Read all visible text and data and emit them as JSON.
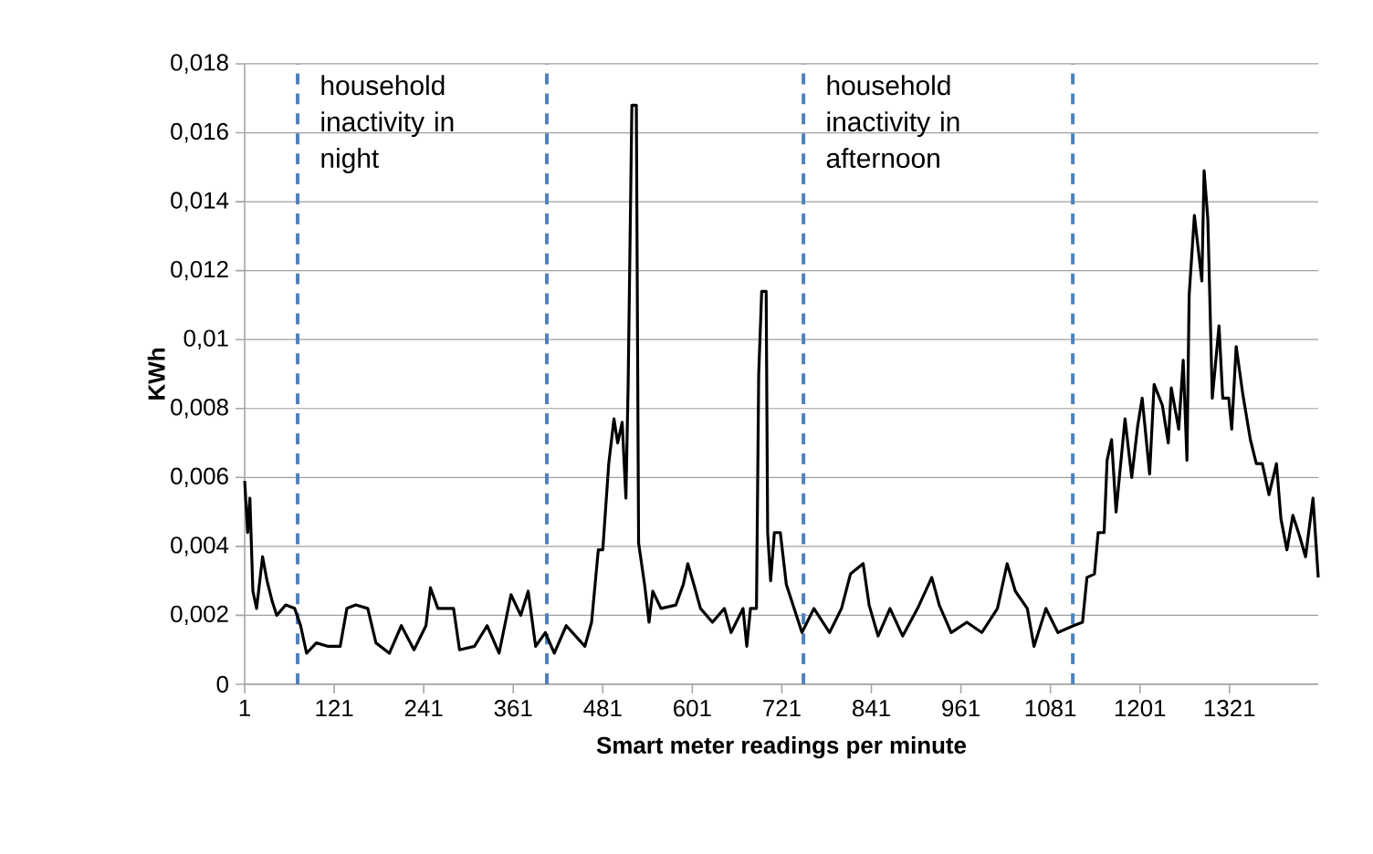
{
  "chart_data": {
    "type": "line",
    "xlabel": "Smart meter readings per minute",
    "ylabel": "KWh",
    "x": [
      1,
      5,
      8,
      12,
      17,
      25,
      31,
      38,
      44,
      56,
      68,
      76,
      84,
      97,
      113,
      129,
      138,
      150,
      166,
      177,
      195,
      211,
      228,
      244,
      250,
      260,
      281,
      289,
      309,
      326,
      342,
      358,
      371,
      381,
      391,
      404,
      416,
      432,
      457,
      466,
      475,
      481,
      489,
      496,
      501,
      507,
      512,
      515,
      520,
      526,
      529,
      537,
      543,
      548,
      559,
      579,
      589,
      595,
      603,
      612,
      628,
      644,
      653,
      669,
      674,
      679,
      687,
      690,
      694,
      700,
      702,
      706,
      711,
      719,
      727,
      748,
      764,
      785,
      801,
      813,
      830,
      838,
      850,
      866,
      883,
      903,
      922,
      932,
      948,
      969,
      989,
      1010,
      1023,
      1034,
      1050,
      1059,
      1075,
      1091,
      1112,
      1124,
      1130,
      1140,
      1145,
      1153,
      1157,
      1163,
      1169,
      1181,
      1190,
      1198,
      1204,
      1214,
      1220,
      1231,
      1239,
      1243,
      1253,
      1259,
      1264,
      1267,
      1274,
      1284,
      1287,
      1292,
      1298,
      1307,
      1312,
      1320,
      1324,
      1330,
      1339,
      1349,
      1357,
      1365,
      1374,
      1384,
      1390,
      1398,
      1406,
      1415,
      1423,
      1433,
      1440
    ],
    "series": [
      {
        "color": "#000000",
        "values": [
          0.0059,
          0.0044,
          0.0054,
          0.0027,
          0.0022,
          0.0037,
          0.003,
          0.0024,
          0.002,
          0.0023,
          0.0022,
          0.0017,
          0.0009,
          0.0012,
          0.0011,
          0.0011,
          0.0022,
          0.0023,
          0.0022,
          0.0012,
          0.0009,
          0.0017,
          0.001,
          0.0017,
          0.0028,
          0.0022,
          0.0022,
          0.001,
          0.0011,
          0.0017,
          0.0009,
          0.0026,
          0.002,
          0.0027,
          0.0011,
          0.0015,
          0.0009,
          0.0017,
          0.0011,
          0.0018,
          0.0039,
          0.0039,
          0.0064,
          0.0077,
          0.007,
          0.0076,
          0.0054,
          0.0087,
          0.0168,
          0.0168,
          0.0041,
          0.0029,
          0.0018,
          0.0027,
          0.0022,
          0.0023,
          0.0029,
          0.0035,
          0.0029,
          0.0022,
          0.0018,
          0.0022,
          0.0015,
          0.0022,
          0.0011,
          0.0022,
          0.0022,
          0.009,
          0.0114,
          0.0114,
          0.0044,
          0.003,
          0.0044,
          0.0044,
          0.0029,
          0.0015,
          0.0022,
          0.0015,
          0.0022,
          0.0032,
          0.0035,
          0.0023,
          0.0014,
          0.0022,
          0.0014,
          0.0022,
          0.0031,
          0.0023,
          0.0015,
          0.0018,
          0.0015,
          0.0022,
          0.0035,
          0.0027,
          0.0022,
          0.0011,
          0.0022,
          0.0015,
          0.0017,
          0.0018,
          0.0031,
          0.0032,
          0.0044,
          0.0044,
          0.0065,
          0.0071,
          0.005,
          0.0077,
          0.006,
          0.0075,
          0.0083,
          0.0061,
          0.0087,
          0.0081,
          0.007,
          0.0086,
          0.0074,
          0.0094,
          0.0065,
          0.0113,
          0.0136,
          0.0117,
          0.0149,
          0.0135,
          0.0083,
          0.0104,
          0.0083,
          0.0083,
          0.0074,
          0.0098,
          0.0084,
          0.0071,
          0.0064,
          0.0064,
          0.0055,
          0.0064,
          0.0048,
          0.0039,
          0.0049,
          0.0043,
          0.0037,
          0.0054,
          0.0031
        ]
      }
    ],
    "xlim": [
      1,
      1440
    ],
    "xticks": [
      1,
      121,
      241,
      361,
      481,
      601,
      721,
      841,
      961,
      1081,
      1201,
      1321
    ],
    "ylim": [
      0,
      0.018
    ],
    "yticks": [
      0,
      {
        "value": 0.002,
        "label": "0,002"
      },
      {
        "value": 0.004,
        "label": "0,004"
      },
      {
        "value": 0.006,
        "label": "0,006"
      },
      {
        "value": 0.008,
        "label": "0,008"
      },
      {
        "value": 0.01,
        "label": "0,01"
      },
      {
        "value": 0.012,
        "label": "0,012"
      },
      {
        "value": 0.014,
        "label": "0,014"
      },
      {
        "value": 0.016,
        "label": "0,016"
      },
      {
        "value": 0.018,
        "label": "0,018"
      }
    ],
    "grid": "y",
    "marker": "none",
    "line_style": "solid",
    "ref_lines": [
      {
        "axis": "x",
        "value": 72,
        "color": "#4f81bd",
        "line_style": "dashed"
      },
      {
        "axis": "x",
        "value": 406,
        "color": "#4f81bd",
        "line_style": "dashed"
      },
      {
        "axis": "x",
        "value": 750,
        "color": "#4f81bd",
        "line_style": "dashed"
      },
      {
        "axis": "x",
        "value": 1111,
        "color": "#4f81bd",
        "line_style": "dashed"
      }
    ],
    "annotations": [
      "household inactivity in night",
      "household inactivity in afternoon"
    ]
  }
}
